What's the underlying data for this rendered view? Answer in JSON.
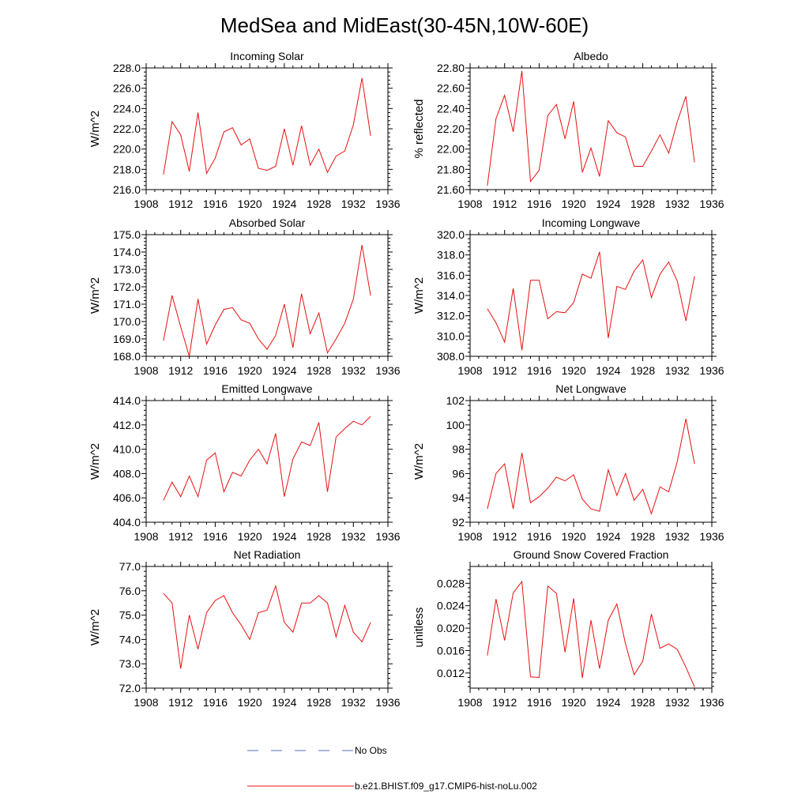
{
  "figure": {
    "title": "MedSea and MidEast(30-45N,10W-60E)",
    "legend": [
      {
        "label": "No Obs",
        "color": "#5a6fb8",
        "dashed": true
      },
      {
        "label": "b.e21.BHIST.f09_g17.CMIP6-hist-noLu.002",
        "color": "#e81010",
        "dashed": false
      }
    ]
  },
  "chart_data": [
    {
      "type": "line",
      "title": "Incoming Solar",
      "xlabel": "",
      "ylabel": "W/m^2",
      "xlim": [
        1908,
        1936
      ],
      "ylim": [
        216.0,
        228.0
      ],
      "ydecimals": 1,
      "xticks": [
        1908,
        1912,
        1916,
        1920,
        1924,
        1928,
        1932,
        1936
      ],
      "yticks": [
        216.0,
        218.0,
        220.0,
        222.0,
        224.0,
        226.0,
        228.0
      ],
      "series": [
        {
          "name": "b.e21.BHIST.f09_g17.CMIP6-hist-noLu.002",
          "x": [
            1910,
            1911,
            1912,
            1913,
            1914,
            1915,
            1916,
            1917,
            1918,
            1919,
            1920,
            1921,
            1922,
            1923,
            1924,
            1925,
            1926,
            1927,
            1928,
            1929,
            1930,
            1931,
            1932,
            1933,
            1934
          ],
          "y": [
            217.5,
            222.7,
            221.4,
            217.8,
            223.6,
            217.6,
            219.1,
            221.7,
            222.1,
            220.4,
            221.0,
            218.1,
            217.9,
            218.3,
            222.0,
            218.4,
            222.3,
            218.4,
            220.0,
            217.7,
            219.3,
            219.8,
            222.4,
            227.0,
            221.3
          ]
        }
      ]
    },
    {
      "type": "line",
      "title": "Albedo",
      "xlabel": "",
      "ylabel": "% reflected",
      "xlim": [
        1908,
        1936
      ],
      "ylim": [
        21.6,
        22.8
      ],
      "ydecimals": 2,
      "xticks": [
        1908,
        1912,
        1916,
        1920,
        1924,
        1928,
        1932,
        1936
      ],
      "yticks": [
        21.6,
        21.8,
        22.0,
        22.2,
        22.4,
        22.6,
        22.8
      ],
      "series": [
        {
          "name": "b.e21.BHIST.f09_g17.CMIP6-hist-noLu.002",
          "x": [
            1910,
            1911,
            1912,
            1913,
            1914,
            1915,
            1916,
            1917,
            1918,
            1919,
            1920,
            1921,
            1922,
            1923,
            1924,
            1925,
            1926,
            1927,
            1928,
            1929,
            1930,
            1931,
            1932,
            1933,
            1934
          ],
          "y": [
            21.64,
            22.3,
            22.53,
            22.17,
            22.77,
            21.68,
            21.79,
            22.33,
            22.44,
            22.1,
            22.47,
            21.77,
            22.01,
            21.73,
            22.28,
            22.16,
            22.12,
            21.83,
            21.83,
            21.98,
            22.14,
            21.96,
            22.27,
            22.52,
            21.87
          ]
        }
      ]
    },
    {
      "type": "line",
      "title": "Absorbed Solar",
      "xlabel": "",
      "ylabel": "W/m^2",
      "xlim": [
        1908,
        1936
      ],
      "ylim": [
        168.0,
        175.0
      ],
      "ydecimals": 1,
      "xticks": [
        1908,
        1912,
        1916,
        1920,
        1924,
        1928,
        1932,
        1936
      ],
      "yticks": [
        168.0,
        169.0,
        170.0,
        171.0,
        172.0,
        173.0,
        174.0,
        175.0
      ],
      "series": [
        {
          "name": "b.e21.BHIST.f09_g17.CMIP6-hist-noLu.002",
          "x": [
            1910,
            1911,
            1912,
            1913,
            1914,
            1915,
            1916,
            1917,
            1918,
            1919,
            1920,
            1921,
            1922,
            1923,
            1924,
            1925,
            1926,
            1927,
            1928,
            1929,
            1930,
            1931,
            1932,
            1933,
            1934
          ],
          "y": [
            168.9,
            171.5,
            169.7,
            168.0,
            171.3,
            168.7,
            169.8,
            170.7,
            170.8,
            170.1,
            169.9,
            169.0,
            168.4,
            169.2,
            171.0,
            168.5,
            171.6,
            169.3,
            170.5,
            168.2,
            169.0,
            169.9,
            171.3,
            174.4,
            171.5
          ]
        }
      ]
    },
    {
      "type": "line",
      "title": "Incoming Longwave",
      "xlabel": "",
      "ylabel": "W/m^2",
      "xlim": [
        1908,
        1936
      ],
      "ylim": [
        308.0,
        320.0
      ],
      "ydecimals": 1,
      "xticks": [
        1908,
        1912,
        1916,
        1920,
        1924,
        1928,
        1932,
        1936
      ],
      "yticks": [
        308.0,
        310.0,
        312.0,
        314.0,
        316.0,
        318.0,
        320.0
      ],
      "series": [
        {
          "name": "b.e21.BHIST.f09_g17.CMIP6-hist-noLu.002",
          "x": [
            1910,
            1911,
            1912,
            1913,
            1914,
            1915,
            1916,
            1917,
            1918,
            1919,
            1920,
            1921,
            1922,
            1923,
            1924,
            1925,
            1926,
            1927,
            1928,
            1929,
            1930,
            1931,
            1932,
            1933,
            1934
          ],
          "y": [
            312.7,
            311.3,
            309.4,
            314.7,
            308.6,
            315.5,
            315.5,
            311.7,
            312.4,
            312.3,
            313.3,
            316.1,
            315.7,
            318.3,
            309.8,
            314.9,
            314.6,
            316.4,
            317.5,
            313.8,
            316.1,
            317.3,
            315.4,
            311.5,
            315.9
          ]
        }
      ]
    },
    {
      "type": "line",
      "title": "Emitted Longwave",
      "xlabel": "",
      "ylabel": "W/m^2",
      "xlim": [
        1908,
        1936
      ],
      "ylim": [
        404.0,
        414.0
      ],
      "ydecimals": 1,
      "xticks": [
        1908,
        1912,
        1916,
        1920,
        1924,
        1928,
        1932,
        1936
      ],
      "yticks": [
        404.0,
        406.0,
        408.0,
        410.0,
        412.0,
        414.0
      ],
      "series": [
        {
          "name": "b.e21.BHIST.f09_g17.CMIP6-hist-noLu.002",
          "x": [
            1910,
            1911,
            1912,
            1913,
            1914,
            1915,
            1916,
            1917,
            1918,
            1919,
            1920,
            1921,
            1922,
            1923,
            1924,
            1925,
            1926,
            1927,
            1928,
            1929,
            1930,
            1931,
            1932,
            1933,
            1934
          ],
          "y": [
            405.8,
            407.3,
            406.1,
            407.8,
            406.1,
            409.1,
            409.7,
            406.5,
            408.1,
            407.8,
            409.1,
            410.0,
            408.8,
            411.3,
            406.1,
            409.2,
            410.6,
            410.3,
            412.2,
            406.5,
            411.0,
            411.7,
            412.3,
            412.0,
            412.7
          ]
        }
      ]
    },
    {
      "type": "line",
      "title": "Net Longwave",
      "xlabel": "",
      "ylabel": "W/m^2",
      "xlim": [
        1908,
        1936
      ],
      "ylim": [
        92,
        102
      ],
      "ydecimals": 0,
      "xticks": [
        1908,
        1912,
        1916,
        1920,
        1924,
        1928,
        1932,
        1936
      ],
      "yticks": [
        92,
        94,
        96,
        98,
        100,
        102
      ],
      "series": [
        {
          "name": "b.e21.BHIST.f09_g17.CMIP6-hist-noLu.002",
          "x": [
            1910,
            1911,
            1912,
            1913,
            1914,
            1915,
            1916,
            1917,
            1918,
            1919,
            1920,
            1921,
            1922,
            1923,
            1924,
            1925,
            1926,
            1927,
            1928,
            1929,
            1930,
            1931,
            1932,
            1933,
            1934
          ],
          "y": [
            93.1,
            96.0,
            96.8,
            93.1,
            97.7,
            93.6,
            94.1,
            94.8,
            95.7,
            95.4,
            95.9,
            93.9,
            93.1,
            92.9,
            96.3,
            94.2,
            96.0,
            93.8,
            94.7,
            92.7,
            94.9,
            94.5,
            97.0,
            100.5,
            96.8
          ]
        }
      ]
    },
    {
      "type": "line",
      "title": "Net Radiation",
      "xlabel": "",
      "ylabel": "W/m^2",
      "xlim": [
        1908,
        1936
      ],
      "ylim": [
        72.0,
        77.0
      ],
      "ydecimals": 1,
      "xticks": [
        1908,
        1912,
        1916,
        1920,
        1924,
        1928,
        1932,
        1936
      ],
      "yticks": [
        72.0,
        73.0,
        74.0,
        75.0,
        76.0,
        77.0
      ],
      "series": [
        {
          "name": "b.e21.BHIST.f09_g17.CMIP6-hist-noLu.002",
          "x": [
            1910,
            1911,
            1912,
            1913,
            1914,
            1915,
            1916,
            1917,
            1918,
            1919,
            1920,
            1921,
            1922,
            1923,
            1924,
            1925,
            1926,
            1927,
            1928,
            1929,
            1930,
            1931,
            1932,
            1933,
            1934
          ],
          "y": [
            75.9,
            75.5,
            72.8,
            75.0,
            73.6,
            75.1,
            75.6,
            75.8,
            75.1,
            74.6,
            74.0,
            75.1,
            75.2,
            76.2,
            74.7,
            74.3,
            75.5,
            75.5,
            75.8,
            75.5,
            74.1,
            75.4,
            74.3,
            73.9,
            74.7
          ]
        }
      ]
    },
    {
      "type": "line",
      "title": "Ground Snow Covered Fraction",
      "xlabel": "",
      "ylabel": "unitless",
      "xlim": [
        1908,
        1936
      ],
      "ylim": [
        0.0093,
        0.031
      ],
      "ydecimals": 3,
      "xticks": [
        1908,
        1912,
        1916,
        1920,
        1924,
        1928,
        1932,
        1936
      ],
      "yticks": [
        0.012,
        0.016,
        0.02,
        0.024,
        0.028
      ],
      "series": [
        {
          "name": "b.e21.BHIST.f09_g17.CMIP6-hist-noLu.002",
          "x": [
            1910,
            1911,
            1912,
            1913,
            1914,
            1915,
            1916,
            1917,
            1918,
            1919,
            1920,
            1921,
            1922,
            1923,
            1924,
            1925,
            1926,
            1927,
            1928,
            1929,
            1930,
            1931,
            1932,
            1933,
            1934
          ],
          "y": [
            0.0151,
            0.0252,
            0.0178,
            0.0263,
            0.0283,
            0.0113,
            0.0112,
            0.0275,
            0.0262,
            0.0157,
            0.0253,
            0.0111,
            0.0214,
            0.0128,
            0.0214,
            0.0243,
            0.0172,
            0.0117,
            0.0141,
            0.0225,
            0.0164,
            0.0172,
            0.0162,
            0.013,
            0.0095
          ]
        }
      ]
    }
  ]
}
